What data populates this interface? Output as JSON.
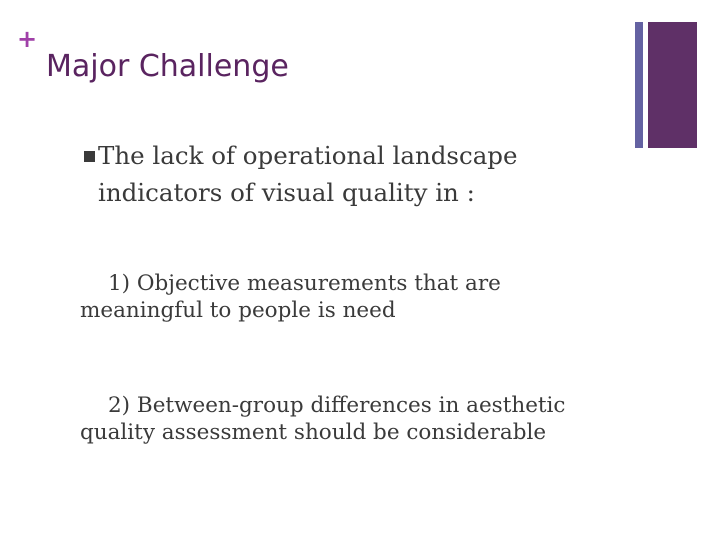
{
  "decoration": {
    "plus": "+",
    "accent_color": "#a040a8",
    "title_color": "#5a2460",
    "bar_thin_color": "#6462a2",
    "bar_thick_color": "#5f3067"
  },
  "slide": {
    "title": "Major Challenge",
    "bullet": {
      "line1": "The lack of operational landscape",
      "line2": "indicators of visual quality in :"
    },
    "items": [
      {
        "line1": "1) Objective measurements that are",
        "line2": "meaningful to people is need"
      },
      {
        "line1": "2) Between-group differences in aesthetic",
        "line2": "quality assessment should be considerable"
      }
    ]
  }
}
